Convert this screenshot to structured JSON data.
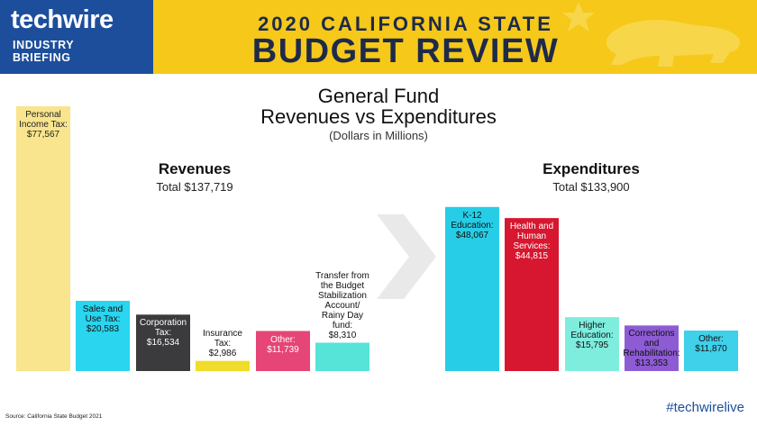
{
  "header": {
    "logo": "techwire",
    "logo_sub1": "INDUSTRY",
    "logo_sub2": "BRIEFING",
    "banner_line1": "2020 CALIFORNIA STATE",
    "banner_line2": "BUDGET REVIEW"
  },
  "colors": {
    "header_blue": "#1d4e9c",
    "banner_yellow": "#f5c81a"
  },
  "chart_data": {
    "type": "bar",
    "title": "General Fund Revenues vs Expenditures",
    "title_line1": "General Fund",
    "title_line2": "Revenues vs Expenditures",
    "subtitle": "(Dollars in Millions)",
    "groups": [
      {
        "name": "Revenues",
        "total": "Total $137,719",
        "bars": [
          {
            "label": "Personal Income Tax: $77,567",
            "label_lines": [
              "Personal",
              "Income Tax:",
              "$77,567"
            ],
            "value": 77567,
            "color": "#f9e58d",
            "text_color": "#222"
          },
          {
            "label": "Sales and Use Tax: $20,583",
            "label_lines": [
              "Sales and",
              "Use Tax:",
              "$20,583"
            ],
            "value": 20583,
            "color": "#29d5ef",
            "text_color": "#111"
          },
          {
            "label": "Corporation Tax: $16,534",
            "label_lines": [
              "Corporation",
              "Tax:",
              "$16,534"
            ],
            "value": 16534,
            "color": "#3b3b3d",
            "text_color": "#ffffff"
          },
          {
            "label": "Insurance Tax: $2,986",
            "label_lines": [
              "Insurance",
              "Tax:",
              "$2,986"
            ],
            "value": 2986,
            "color": "#f0dc2a",
            "text_color": "#111"
          },
          {
            "label": "Other: $11,739",
            "label_lines": [
              "Other:",
              "$11,739"
            ],
            "value": 11739,
            "color": "#e54577",
            "text_color": "#ffffff"
          },
          {
            "label": "Transfer from the Budget Stabilization Account/ Rainy Day fund: $8,310",
            "label_lines": [
              "Transfer from",
              "the Budget",
              "Stabilization",
              "Account/",
              "Rainy Day",
              "fund:",
              "$8,310"
            ],
            "value": 8310,
            "color": "#56e3d8",
            "text_color": "#111"
          }
        ]
      },
      {
        "name": "Expenditures",
        "total": "Total $133,900",
        "bars": [
          {
            "label": "K-12 Education: $48,067",
            "label_lines": [
              "K-12",
              "Education:",
              "$48,067"
            ],
            "value": 48067,
            "color": "#27cde6",
            "text_color": "#111"
          },
          {
            "label": "Health and Human Services: $44,815",
            "label_lines": [
              "Health and",
              "Human",
              "Services:",
              "$44,815"
            ],
            "value": 44815,
            "color": "#d6172f",
            "text_color": "#ffffff"
          },
          {
            "label": "Higher Education: $15,795",
            "label_lines": [
              "Higher",
              "Education:",
              "$15,795"
            ],
            "value": 15795,
            "color": "#7eedde",
            "text_color": "#111"
          },
          {
            "label": "Corrections and Rehabilitation: $13,353",
            "label_lines": [
              "Corrections",
              "and",
              "Rehabilitation:",
              "$13,353"
            ],
            "value": 13353,
            "color": "#8d5bd3",
            "text_color": "#111"
          },
          {
            "label": "Other: $11,870",
            "label_lines": [
              "Other:",
              "$11,870"
            ],
            "value": 11870,
            "color": "#3fd0ea",
            "text_color": "#111"
          }
        ]
      }
    ],
    "grid": false,
    "legend": "none"
  },
  "footer": {
    "source": "Source: California State Budget 2021",
    "hashtag": "#techwirelive"
  }
}
